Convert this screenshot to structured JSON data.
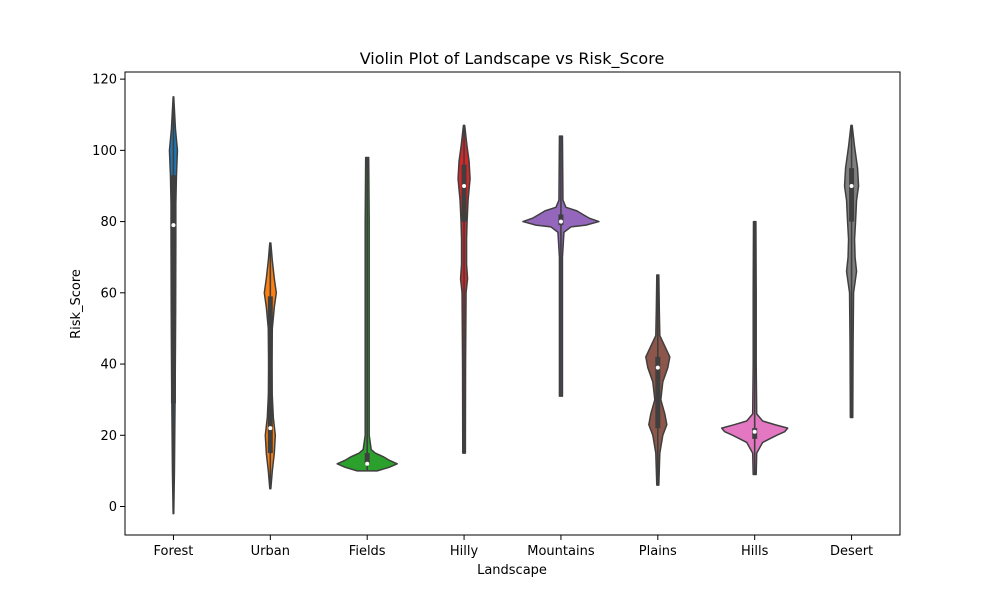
{
  "chart_data": {
    "type": "violin",
    "title": "Violin Plot of Landscape vs Risk_Score",
    "xlabel": "Landscape",
    "ylabel": "Risk_Score",
    "ylim": [
      -8,
      122
    ],
    "yticks": [
      0,
      20,
      40,
      60,
      80,
      100,
      120
    ],
    "categories": [
      "Forest",
      "Urban",
      "Fields",
      "Hilly",
      "Mountains",
      "Plains",
      "Hills",
      "Desert"
    ],
    "colors": [
      "#1f77b4",
      "#ff7f0e",
      "#2ca02c",
      "#d62728",
      "#9467bd",
      "#8c564b",
      "#e377c2",
      "#7f7f7f"
    ],
    "violins": [
      {
        "name": "Forest",
        "min": -2,
        "max": 115,
        "q1": 29,
        "median": 79,
        "q3": 93,
        "profile": [
          [
            -2,
            0.3
          ],
          [
            10,
            1
          ],
          [
            20,
            1.3
          ],
          [
            29,
            1.6
          ],
          [
            45,
            2
          ],
          [
            55,
            2.2
          ],
          [
            65,
            2.3
          ],
          [
            75,
            2.4
          ],
          [
            85,
            2.4
          ],
          [
            93,
            3
          ],
          [
            100,
            4
          ],
          [
            106,
            2
          ],
          [
            115,
            0.3
          ]
        ]
      },
      {
        "name": "Urban",
        "min": 5,
        "max": 74,
        "q1": 15,
        "median": 22,
        "q3": 59,
        "profile": [
          [
            5,
            0.5
          ],
          [
            10,
            2
          ],
          [
            15,
            4
          ],
          [
            20,
            5
          ],
          [
            25,
            3
          ],
          [
            32,
            1.8
          ],
          [
            40,
            1.5
          ],
          [
            50,
            2
          ],
          [
            56,
            4
          ],
          [
            60,
            6
          ],
          [
            64,
            4
          ],
          [
            69,
            2
          ],
          [
            74,
            0.5
          ]
        ]
      },
      {
        "name": "Fields",
        "min": 10,
        "max": 98,
        "q1": 12,
        "median": 12,
        "q3": 15,
        "profile": [
          [
            10,
            10
          ],
          [
            11,
            22
          ],
          [
            12,
            30
          ],
          [
            13,
            22
          ],
          [
            14,
            16
          ],
          [
            15,
            8
          ],
          [
            16,
            4
          ],
          [
            20,
            2
          ],
          [
            40,
            2
          ],
          [
            60,
            2
          ],
          [
            80,
            2
          ],
          [
            98,
            1.5
          ]
        ]
      },
      {
        "name": "Hilly",
        "min": 15,
        "max": 107,
        "q1": 80,
        "median": 90,
        "q3": 96,
        "profile": [
          [
            15,
            1.3
          ],
          [
            40,
            1.5
          ],
          [
            60,
            2
          ],
          [
            64,
            3.5
          ],
          [
            68,
            2.5
          ],
          [
            75,
            2.5
          ],
          [
            80,
            3
          ],
          [
            86,
            4
          ],
          [
            92,
            6
          ],
          [
            97,
            5
          ],
          [
            101,
            3
          ],
          [
            107,
            0.6
          ]
        ]
      },
      {
        "name": "Mountains",
        "min": 31,
        "max": 104,
        "q1": 79,
        "median": 80,
        "q3": 82,
        "profile": [
          [
            31,
            1.5
          ],
          [
            50,
            1.5
          ],
          [
            70,
            1.5
          ],
          [
            77,
            3
          ],
          [
            78.5,
            10
          ],
          [
            79,
            25
          ],
          [
            80,
            38
          ],
          [
            81,
            28
          ],
          [
            82,
            22
          ],
          [
            83,
            16
          ],
          [
            84,
            5
          ],
          [
            86,
            2
          ],
          [
            104,
            1.5
          ]
        ]
      },
      {
        "name": "Plains",
        "min": 6,
        "max": 65,
        "q1": 22,
        "median": 39,
        "q3": 42,
        "profile": [
          [
            6,
            1
          ],
          [
            15,
            2
          ],
          [
            20,
            5
          ],
          [
            23,
            9
          ],
          [
            26,
            7
          ],
          [
            30,
            3
          ],
          [
            35,
            5
          ],
          [
            39,
            10
          ],
          [
            42,
            12
          ],
          [
            45,
            7
          ],
          [
            48,
            2
          ],
          [
            55,
            1.5
          ],
          [
            65,
            1
          ]
        ]
      },
      {
        "name": "Hills",
        "min": 9,
        "max": 80,
        "q1": 19,
        "median": 21,
        "q3": 22,
        "profile": [
          [
            9,
            1.5
          ],
          [
            15,
            2
          ],
          [
            18,
            8
          ],
          [
            19,
            15
          ],
          [
            20,
            22
          ],
          [
            21,
            30
          ],
          [
            22,
            33
          ],
          [
            23,
            20
          ],
          [
            24,
            8
          ],
          [
            26,
            2
          ],
          [
            40,
            1.5
          ],
          [
            60,
            1.5
          ],
          [
            80,
            1.2
          ]
        ]
      },
      {
        "name": "Desert",
        "min": 25,
        "max": 107,
        "q1": 80,
        "median": 90,
        "q3": 95,
        "profile": [
          [
            25,
            1.2
          ],
          [
            45,
            1.5
          ],
          [
            60,
            2
          ],
          [
            64,
            4
          ],
          [
            66,
            5
          ],
          [
            70,
            3.5
          ],
          [
            75,
            3
          ],
          [
            80,
            4
          ],
          [
            86,
            5
          ],
          [
            90,
            7
          ],
          [
            95,
            6
          ],
          [
            101,
            3
          ],
          [
            107,
            0.6
          ]
        ]
      }
    ]
  }
}
